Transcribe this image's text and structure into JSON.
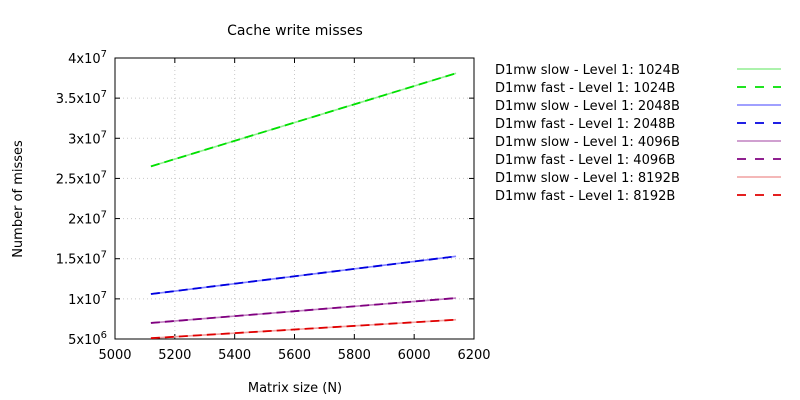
{
  "chart_data": {
    "type": "line",
    "title": "Cache write misses",
    "xlabel": "Matrix size (N)",
    "ylabel": "Number of misses",
    "xlim": [
      5000,
      6200
    ],
    "ylim": [
      5000000,
      40000000
    ],
    "xticks": [
      5000,
      5200,
      5400,
      5600,
      5800,
      6000,
      6200
    ],
    "yticks": [
      {
        "value": 5000000,
        "mant": "5x10",
        "exp": "6"
      },
      {
        "value": 10000000,
        "mant": "1x10",
        "exp": "7"
      },
      {
        "value": 15000000,
        "mant": "1.5x10",
        "exp": "7"
      },
      {
        "value": 20000000,
        "mant": "2x10",
        "exp": "7"
      },
      {
        "value": 25000000,
        "mant": "2.5x10",
        "exp": "7"
      },
      {
        "value": 30000000,
        "mant": "3x10",
        "exp": "7"
      },
      {
        "value": 35000000,
        "mant": "3.5x10",
        "exp": "7"
      },
      {
        "value": 40000000,
        "mant": "4x10",
        "exp": "7"
      }
    ],
    "grid": true,
    "legend_position": "outside-right",
    "series": [
      {
        "name": "D1mw slow - Level 1: 1024B",
        "color": "#90ee90",
        "dashed": false,
        "x": [
          5120,
          6140
        ],
        "y": [
          26500000,
          38100000
        ]
      },
      {
        "name": "D1mw fast - Level 1: 1024B",
        "color": "#00e000",
        "dashed": true,
        "x": [
          5120,
          6140
        ],
        "y": [
          26500000,
          38100000
        ]
      },
      {
        "name": "D1mw slow - Level 1: 2048B",
        "color": "#8080ff",
        "dashed": false,
        "x": [
          5120,
          6140
        ],
        "y": [
          10600000,
          15300000
        ]
      },
      {
        "name": "D1mw fast - Level 1: 2048B",
        "color": "#0000e0",
        "dashed": true,
        "x": [
          5120,
          6140
        ],
        "y": [
          10600000,
          15300000
        ]
      },
      {
        "name": "D1mw slow - Level 1: 4096B",
        "color": "#c080c0",
        "dashed": false,
        "x": [
          5120,
          6140
        ],
        "y": [
          7000000,
          10100000
        ]
      },
      {
        "name": "D1mw fast - Level 1: 4096B",
        "color": "#800080",
        "dashed": true,
        "x": [
          5120,
          6140
        ],
        "y": [
          7000000,
          10100000
        ]
      },
      {
        "name": "D1mw slow - Level 1: 8192B",
        "color": "#f0a0a0",
        "dashed": false,
        "x": [
          5120,
          6140
        ],
        "y": [
          5100000,
          7400000
        ]
      },
      {
        "name": "D1mw fast - Level 1: 8192B",
        "color": "#e00000",
        "dashed": true,
        "x": [
          5120,
          6140
        ],
        "y": [
          5100000,
          7400000
        ]
      }
    ]
  }
}
